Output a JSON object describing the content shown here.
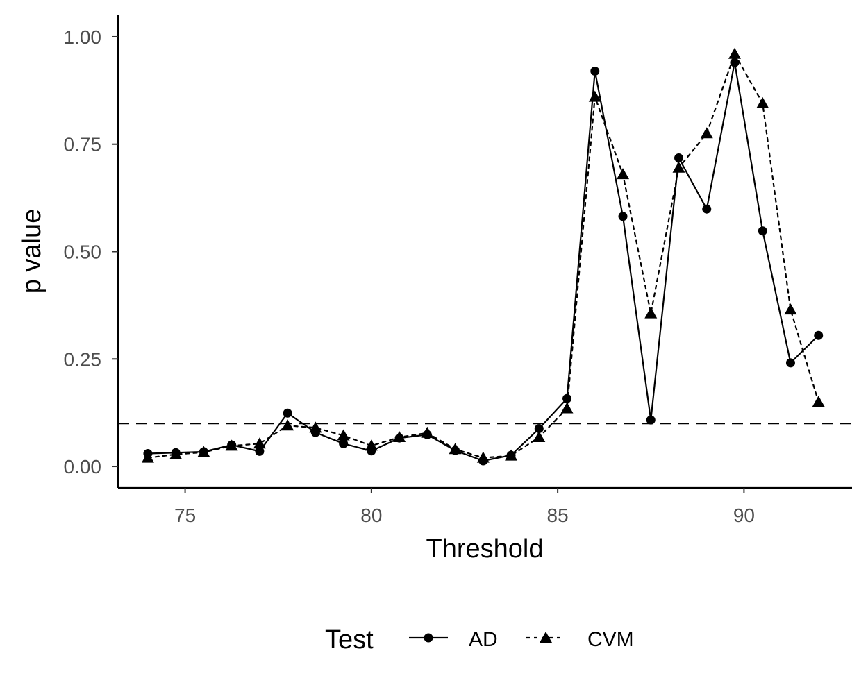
{
  "chart_data": {
    "type": "line",
    "xlabel": "Threshold",
    "ylabel": "p value",
    "xlim": [
      73.2,
      92.9
    ],
    "ylim": [
      -0.05,
      1.05
    ],
    "x_ticks": [
      75,
      80,
      85,
      90
    ],
    "x_tick_labels": [
      "75",
      "80",
      "85",
      "90"
    ],
    "y_ticks": [
      0.0,
      0.25,
      0.5,
      0.75,
      1.0
    ],
    "y_tick_labels": [
      "0.00",
      "0.25",
      "0.50",
      "0.75",
      "1.00"
    ],
    "reference_line": {
      "y": 0.1,
      "style": "dashed"
    },
    "grid": false,
    "legend": {
      "title": "Test",
      "position": "bottom",
      "entries": [
        {
          "label": "AD",
          "marker": "circle",
          "linestyle": "solid"
        },
        {
          "label": "CVM",
          "marker": "triangle",
          "linestyle": "dotted"
        }
      ]
    },
    "x": [
      74.0,
      74.75,
      75.5,
      76.25,
      77.0,
      77.75,
      78.5,
      79.25,
      80.0,
      80.75,
      81.5,
      82.25,
      83.0,
      83.75,
      84.5,
      85.25,
      86.0,
      86.75,
      87.5,
      88.25,
      89.0,
      89.75,
      90.5,
      91.25,
      92.0
    ],
    "series": [
      {
        "name": "AD",
        "marker": "circle",
        "linestyle": "solid",
        "values": [
          0.03,
          0.032,
          0.034,
          0.05,
          0.035,
          0.124,
          0.079,
          0.053,
          0.036,
          0.066,
          0.074,
          0.037,
          0.013,
          0.026,
          0.088,
          0.158,
          0.92,
          0.582,
          0.108,
          0.718,
          0.599,
          0.94,
          0.548,
          0.241,
          0.305
        ]
      },
      {
        "name": "CVM",
        "marker": "triangle",
        "linestyle": "dotted",
        "values": [
          0.02,
          0.028,
          0.033,
          0.048,
          0.053,
          0.095,
          0.09,
          0.072,
          0.048,
          0.068,
          0.078,
          0.04,
          0.02,
          0.025,
          0.068,
          0.135,
          0.86,
          0.68,
          0.356,
          0.695,
          0.775,
          0.96,
          0.845,
          0.365,
          0.15
        ]
      }
    ]
  }
}
